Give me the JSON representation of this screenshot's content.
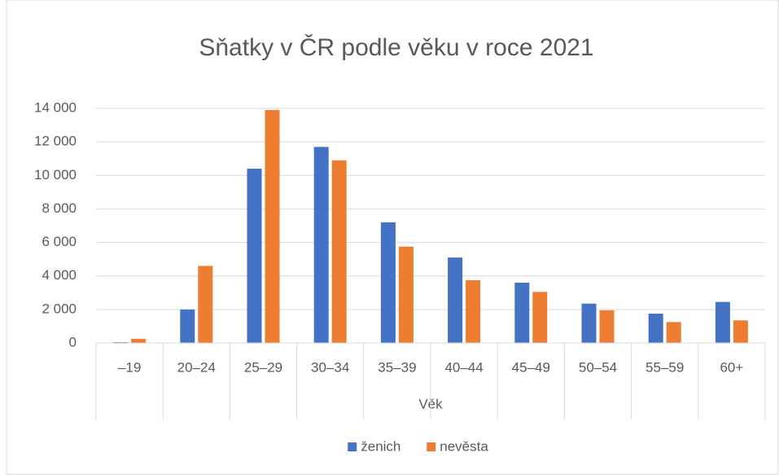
{
  "chart_data": {
    "type": "bar",
    "title": "Sňatky v ČR podle věku v roce 2021",
    "x_label": "Věk",
    "categories": [
      "–19",
      "20–24",
      "25–29",
      "30–34",
      "35–39",
      "40–44",
      "45–49",
      "50–54",
      "55–59",
      "60+"
    ],
    "series": [
      {
        "name": "ženich",
        "color": "#4472c4",
        "values": [
          50,
          2000,
          10400,
          11700,
          7200,
          5100,
          3600,
          2350,
          1750,
          2450
        ]
      },
      {
        "name": "nevěsta",
        "color": "#ed7d31",
        "values": [
          250,
          4600,
          13900,
          10900,
          5750,
          3750,
          3050,
          1950,
          1250,
          1350
        ]
      }
    ],
    "ylim": [
      0,
      14000
    ],
    "yticks": [
      0,
      {
        "value": 2000,
        "label": "2 000"
      },
      {
        "value": 4000,
        "label": "4 000"
      },
      {
        "value": 6000,
        "label": "6 000"
      },
      {
        "value": 8000,
        "label": "8 000"
      },
      {
        "value": 10000,
        "label": "10 000"
      },
      {
        "value": 12000,
        "label": "12 000"
      },
      {
        "value": 14000,
        "label": "14 000"
      }
    ],
    "grid": true,
    "legend": "bottom"
  }
}
